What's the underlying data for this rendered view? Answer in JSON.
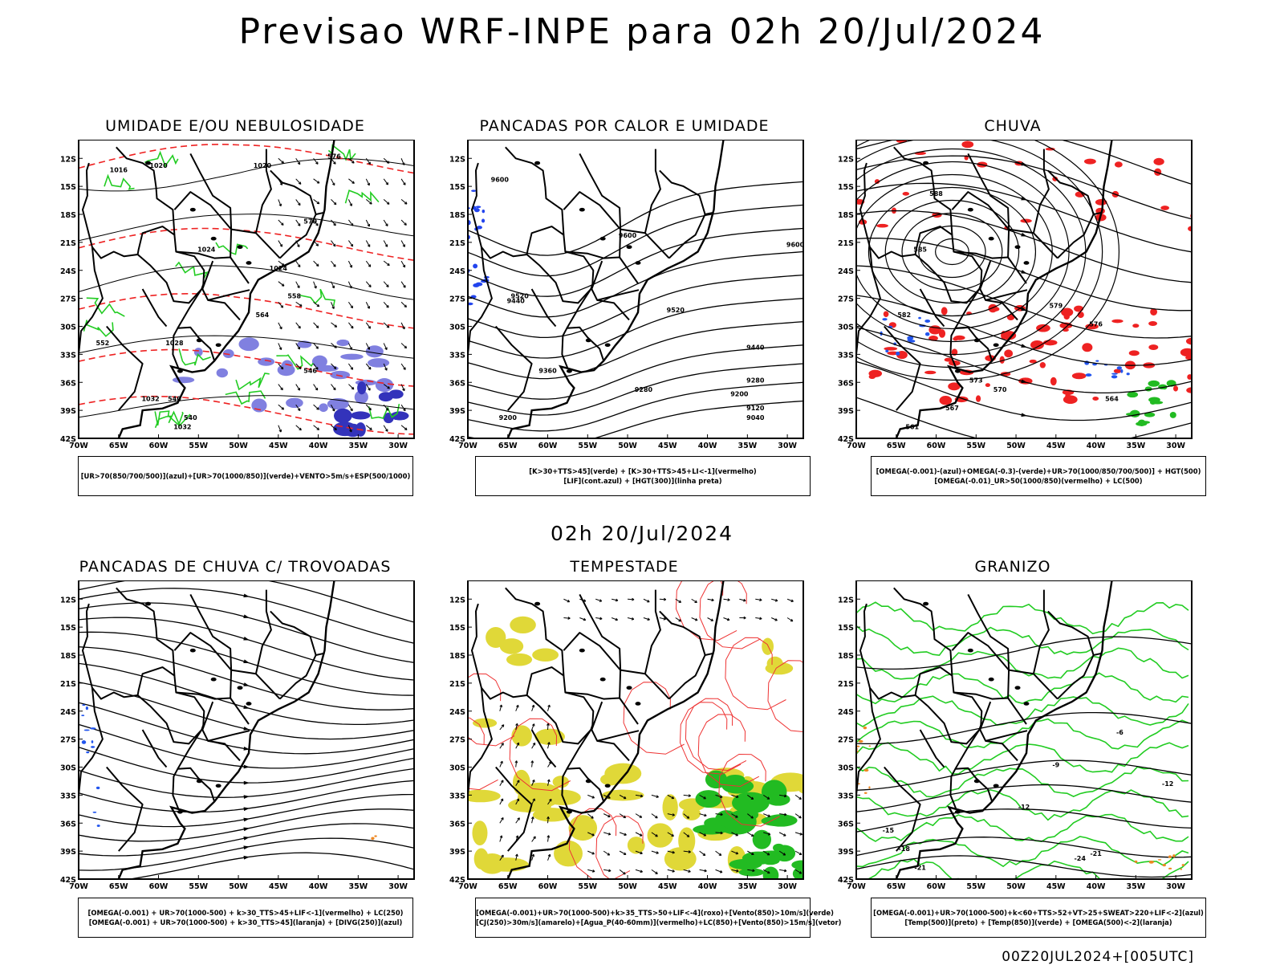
{
  "title": "Previsao WRF-INPE  para 02h 20/Jul/2024",
  "middle_time": "02h 20/Jul/2024",
  "run_id": "00Z20JUL2024+[005UTC]",
  "axes": {
    "lat_ticks": [
      "12S",
      "15S",
      "18S",
      "21S",
      "24S",
      "27S",
      "30S",
      "33S",
      "36S",
      "39S",
      "42S"
    ],
    "lon_ticks": [
      "70W",
      "65W",
      "60W",
      "55W",
      "50W",
      "45W",
      "40W",
      "35W",
      "30W"
    ]
  },
  "panels": [
    {
      "id": "umidade",
      "title": "UMIDADE E/OU NEBULOSIDADE",
      "legend": [
        "[UR>70(850/700/500)](azul)+[UR>70(1000/850)](verde)+VENTO>5m/s+ESP(500/1000)"
      ],
      "contour_labels": [
        "1016",
        "1020",
        "1020",
        "1024",
        "1024",
        "1028",
        "1032",
        "1032",
        "576",
        "570",
        "564",
        "552",
        "540",
        "540",
        "546",
        "558"
      ]
    },
    {
      "id": "pancadas-calor",
      "title": "PANCADAS POR CALOR E UMIDADE",
      "legend": [
        "[K>30+TTS>45](verde) + [K>30+TTS>45+LI<-1](vermelho)",
        "[LIF](cont.azul) + [HGT(300)](linha preta)"
      ],
      "contour_labels": [
        "9600",
        "9600",
        "9600",
        "9520",
        "9520",
        "9440",
        "9440",
        "9360",
        "9280",
        "9280",
        "9200",
        "9200",
        "9120",
        "9040"
      ]
    },
    {
      "id": "chuva",
      "title": "CHUVA",
      "legend": [
        "[OMEGA(-0.001)-(azul)+OMEGA(-0.3)-(verde)+UR>70(1000/850/700/500)] + HGT(500)",
        "[OMEGA(-0.01)_UR>50(1000/850)(vermelho) + LC(500)"
      ],
      "contour_labels": [
        "588",
        "585",
        "582",
        "579",
        "576",
        "573",
        "570",
        "567",
        "564",
        "561"
      ]
    },
    {
      "id": "pancadas-trovoadas",
      "title": "PANCADAS DE CHUVA C/ TROVOADAS",
      "legend": [
        "[OMEGA(-0.001) + UR>70(1000-500) + k>30_TTS>45+LIF<-1](vermelho) + LC(250)",
        "[OMEGA(-0.001) + UR>70(1000-500) + k>30_TTS>45](laranja) + [DIVG(250)](azul)"
      ],
      "contour_labels": []
    },
    {
      "id": "tempestade",
      "title": "TEMPESTADE",
      "legend": [
        "[OMEGA(-0.001)+UR>70(1000-500)+k>35_TTS>50+LIF<-4](roxo)+[Vento(850)>10m/s](verde)",
        "[CJ(250)>30m/s](amarelo)+[Agua_P(40-60mm)](vermelho)+LC(850)+[Vento(850)>15m/s](vetor)"
      ],
      "contour_labels": []
    },
    {
      "id": "granizo",
      "title": "GRANIZO",
      "legend": [
        "[OMEGA(-0.001)+UR>70(1000-500)+k<60+TTS>52+VT>25+SWEAT>220+LIF<-2](azul)",
        "[Temp(500)](preto) + [Temp(850)](verde) + [OMEGA(500)<-2](laranja)"
      ],
      "contour_labels": [
        "-6",
        "-9",
        "-12",
        "-12",
        "-15",
        "-18",
        "-21",
        "-21",
        "-24"
      ]
    }
  ],
  "colors": {
    "umidade_green": "#22cc22",
    "umidade_blue": "#8080e0",
    "thickness_red": "#ee2222",
    "lif_blue": "#2244ee",
    "rain_red": "#ee2222",
    "storm_yellow": "#e0d838",
    "storm_green": "#22bb22",
    "storm_red": "#ee3333",
    "hail_orange": "#ee8822"
  }
}
